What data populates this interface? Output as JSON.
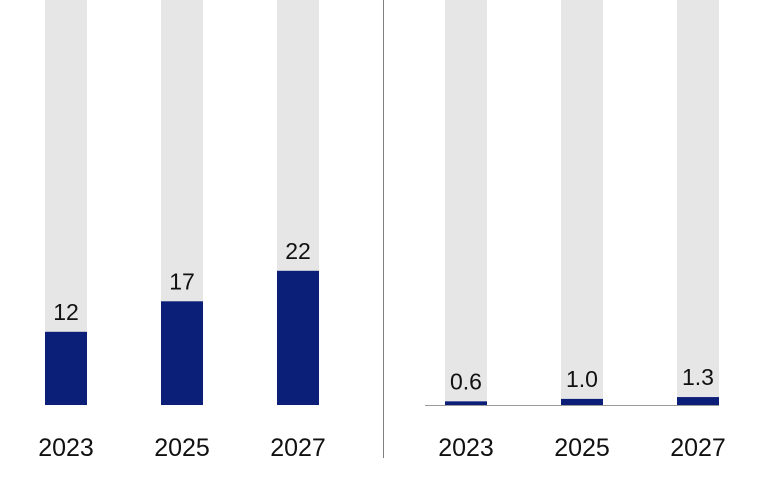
{
  "colors": {
    "bar_fill": "#0b1f78",
    "track_fill": "#e6e6e6",
    "axis_line": "#9a9a9a",
    "divider": "#7f7f7f",
    "text": "#111111"
  },
  "chart_data": [
    {
      "type": "bar",
      "title": "",
      "xlabel": "",
      "ylabel": "",
      "categories": [
        "2023",
        "2025",
        "2027"
      ],
      "values": [
        12,
        17,
        22
      ],
      "value_labels": [
        "12",
        "17",
        "22"
      ],
      "ylim": [
        0,
        55
      ],
      "grid": false,
      "legend": "none",
      "background_track": true
    },
    {
      "type": "bar",
      "title": "",
      "xlabel": "",
      "ylabel": "",
      "categories": [
        "2023",
        "2025",
        "2027"
      ],
      "values": [
        0.6,
        1.0,
        1.3
      ],
      "value_labels": [
        "0.6",
        "1.0",
        "1.3"
      ],
      "ylim": [
        0,
        55
      ],
      "grid": false,
      "legend": "none",
      "background_track": true
    }
  ]
}
